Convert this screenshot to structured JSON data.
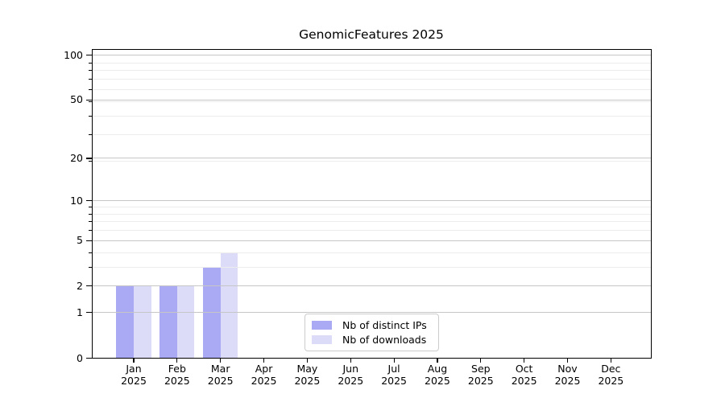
{
  "chart_data": {
    "type": "bar",
    "title": "GenomicFeatures 2025",
    "x_axis": {
      "months": [
        "Jan",
        "Feb",
        "Mar",
        "Apr",
        "May",
        "Jun",
        "Jul",
        "Aug",
        "Sep",
        "Oct",
        "Nov",
        "Dec"
      ],
      "year": "2025"
    },
    "series": [
      {
        "name": "Nb of distinct IPs",
        "color": "#aaaaf4",
        "values": [
          2,
          2,
          3,
          0,
          0,
          0,
          0,
          0,
          0,
          0,
          0,
          0
        ]
      },
      {
        "name": "Nb of downloads",
        "color": "#dcdcf8",
        "values": [
          2,
          2,
          4,
          0,
          0,
          0,
          0,
          0,
          0,
          0,
          0,
          0
        ]
      }
    ],
    "y_axis": {
      "scale": "log10(1+value)",
      "major_ticks": [
        0,
        1,
        2,
        5,
        10,
        20,
        50,
        100
      ],
      "minor_ticks": [
        3,
        4,
        6,
        7,
        8,
        9,
        19,
        29,
        39,
        49,
        59,
        69,
        79,
        89
      ],
      "range_top": 110
    },
    "grid": {
      "horizontal": true,
      "major_color": "#c6c6c6",
      "minor_color": "#ececec"
    },
    "legend": {
      "position": "lower center"
    }
  }
}
